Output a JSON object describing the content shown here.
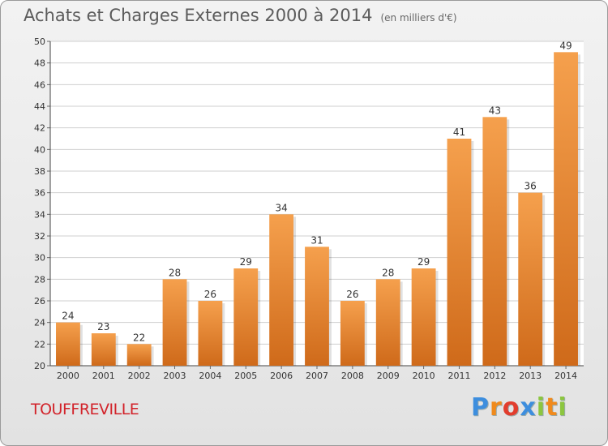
{
  "chart_data": {
    "type": "bar",
    "title": "Achats et Charges Externes 2000 à 2014",
    "subtitle": "(en milliers d'€)",
    "categories": [
      "2000",
      "2001",
      "2002",
      "2003",
      "2004",
      "2005",
      "2006",
      "2007",
      "2008",
      "2009",
      "2010",
      "2011",
      "2012",
      "2013",
      "2014"
    ],
    "values": [
      24,
      23,
      22,
      28,
      26,
      29,
      34,
      31,
      26,
      28,
      29,
      41,
      43,
      36,
      49
    ],
    "ylim": [
      20,
      50
    ],
    "yticks": [
      20,
      22,
      24,
      26,
      28,
      30,
      32,
      34,
      36,
      38,
      40,
      42,
      44,
      46,
      48,
      50
    ],
    "grid": true,
    "bar_color_light": "#f5a04d",
    "bar_color_dark": "#cf6a1a"
  },
  "place_name": "TOUFFREVILLE",
  "logo": {
    "letters": [
      "P",
      "r",
      "o",
      "x",
      "i",
      "t",
      "i"
    ],
    "colors": [
      "#3d8ede",
      "#f08a1c",
      "#e23d2d",
      "#3d8ede",
      "#8cc63f",
      "#f08a1c",
      "#8cc63f"
    ]
  }
}
